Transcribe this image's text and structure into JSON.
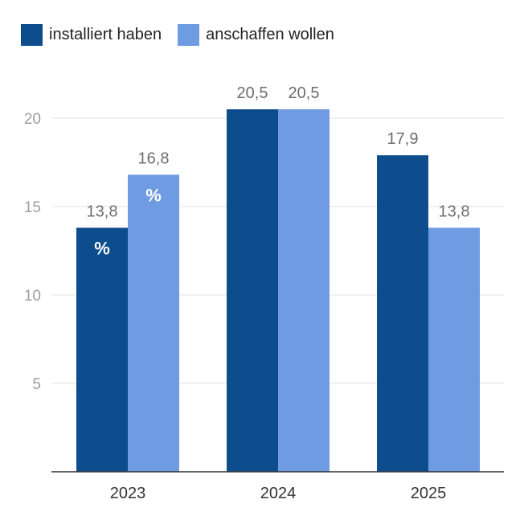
{
  "chart_data": {
    "type": "bar",
    "categories": [
      "2023",
      "2024",
      "2025"
    ],
    "series": [
      {
        "name": "installiert haben",
        "values": [
          13.8,
          20.5,
          17.9
        ],
        "labels": [
          "13,8",
          "20,5",
          "17,9"
        ],
        "color": "#0d4c8d"
      },
      {
        "name": "anschaffen wollen",
        "values": [
          16.8,
          20.5,
          13.8
        ],
        "labels": [
          "16,8",
          "20,5",
          "13,8"
        ],
        "color": "#6e9be2"
      }
    ],
    "yticks": [
      5,
      10,
      15,
      20
    ],
    "ylim": [
      0,
      20
    ],
    "unit_label": "%",
    "grid": true,
    "legend_position": "top-left"
  }
}
